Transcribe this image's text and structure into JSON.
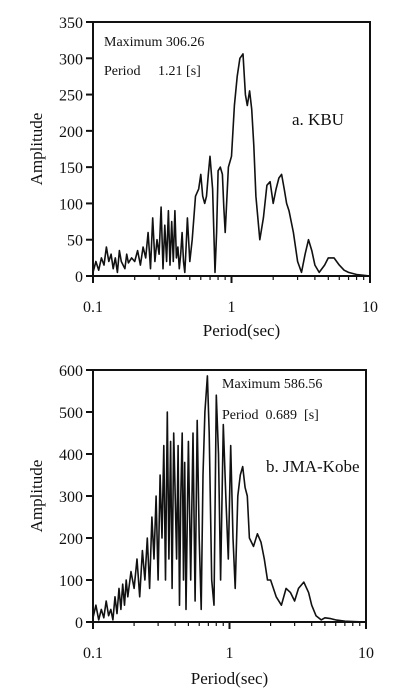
{
  "chart_data": [
    {
      "type": "line",
      "panel_label": "a. KBU",
      "annotation_max": "Maximum 306.26",
      "annotation_period": "Period     1.21 [s]",
      "xlabel": "Period(sec)",
      "ylabel": "Amplitude",
      "xscale": "log",
      "xlim": [
        0.1,
        10
      ],
      "ylim": [
        0,
        350
      ],
      "xticks": [
        0.1,
        1,
        10
      ],
      "xtick_labels": [
        "0.1",
        "1",
        "10"
      ],
      "yticks": [
        0,
        50,
        100,
        150,
        200,
        250,
        300,
        350
      ],
      "ytick_labels": [
        "0",
        "50",
        "100",
        "150",
        "200",
        "250",
        "300",
        "350"
      ],
      "grid": false,
      "series": [
        {
          "x": [
            0.1,
            0.105,
            0.11,
            0.115,
            0.12,
            0.125,
            0.13,
            0.135,
            0.14,
            0.145,
            0.15,
            0.155,
            0.16,
            0.165,
            0.17,
            0.175,
            0.18,
            0.19,
            0.2,
            0.21,
            0.22,
            0.23,
            0.24,
            0.25,
            0.26,
            0.27,
            0.28,
            0.29,
            0.3,
            0.31,
            0.32,
            0.33,
            0.34,
            0.35,
            0.36,
            0.37,
            0.38,
            0.39,
            0.4,
            0.41,
            0.42,
            0.43,
            0.44,
            0.45,
            0.46,
            0.47,
            0.48,
            0.5,
            0.52,
            0.55,
            0.58,
            0.6,
            0.62,
            0.64,
            0.66,
            0.68,
            0.7,
            0.73,
            0.76,
            0.78,
            0.8,
            0.83,
            0.86,
            0.88,
            0.9,
            0.95,
            1.0,
            1.05,
            1.1,
            1.15,
            1.21,
            1.26,
            1.3,
            1.35,
            1.4,
            1.45,
            1.5,
            1.6,
            1.7,
            1.8,
            1.9,
            2.0,
            2.1,
            2.2,
            2.3,
            2.4,
            2.5,
            2.6,
            2.8,
            3.0,
            3.2,
            3.4,
            3.6,
            3.8,
            4.0,
            4.3,
            4.7,
            5.0,
            5.5,
            6.0,
            6.5,
            7.0,
            8.0,
            9.0,
            10.0
          ],
          "y": [
            5,
            20,
            8,
            25,
            15,
            40,
            20,
            30,
            10,
            25,
            5,
            35,
            20,
            15,
            10,
            30,
            18,
            25,
            20,
            35,
            15,
            40,
            25,
            60,
            10,
            80,
            20,
            50,
            30,
            95,
            10,
            70,
            20,
            90,
            15,
            75,
            20,
            90,
            25,
            40,
            10,
            30,
            60,
            20,
            5,
            40,
            80,
            20,
            50,
            110,
            120,
            140,
            110,
            100,
            110,
            140,
            165,
            120,
            5,
            60,
            145,
            150,
            140,
            95,
            60,
            150,
            165,
            235,
            275,
            300,
            306,
            250,
            235,
            255,
            230,
            180,
            110,
            50,
            80,
            125,
            130,
            100,
            120,
            135,
            140,
            120,
            100,
            90,
            60,
            20,
            5,
            30,
            50,
            35,
            15,
            5,
            15,
            25,
            25,
            15,
            8,
            5,
            2,
            1,
            0
          ]
        }
      ]
    },
    {
      "type": "line",
      "panel_label": "b. JMA-Kobe",
      "annotation_max": "Maximum 586.56",
      "annotation_period": "Period  0.689  [s]",
      "xlabel": "Period(sec)",
      "ylabel": "Amplitude",
      "xscale": "log",
      "xlim": [
        0.1,
        10
      ],
      "ylim": [
        0,
        600
      ],
      "xticks": [
        0.1,
        1,
        10
      ],
      "xtick_labels": [
        "0.1",
        "1",
        "10"
      ],
      "yticks": [
        0,
        100,
        200,
        300,
        400,
        500,
        600
      ],
      "ytick_labels": [
        "0",
        "100",
        "200",
        "300",
        "400",
        "500",
        "600"
      ],
      "grid": false,
      "series": [
        {
          "x": [
            0.1,
            0.105,
            0.11,
            0.115,
            0.12,
            0.125,
            0.13,
            0.135,
            0.14,
            0.145,
            0.15,
            0.155,
            0.16,
            0.165,
            0.17,
            0.175,
            0.18,
            0.19,
            0.2,
            0.21,
            0.22,
            0.23,
            0.24,
            0.25,
            0.26,
            0.27,
            0.28,
            0.29,
            0.3,
            0.31,
            0.32,
            0.33,
            0.34,
            0.35,
            0.36,
            0.37,
            0.38,
            0.39,
            0.4,
            0.41,
            0.42,
            0.43,
            0.44,
            0.45,
            0.46,
            0.47,
            0.48,
            0.5,
            0.52,
            0.54,
            0.56,
            0.58,
            0.6,
            0.62,
            0.64,
            0.66,
            0.689,
            0.71,
            0.74,
            0.77,
            0.8,
            0.83,
            0.86,
            0.9,
            0.94,
            0.98,
            1.02,
            1.06,
            1.1,
            1.15,
            1.2,
            1.25,
            1.3,
            1.35,
            1.4,
            1.5,
            1.6,
            1.7,
            1.8,
            1.9,
            2.0,
            2.2,
            2.4,
            2.6,
            2.8,
            3.0,
            3.2,
            3.5,
            3.8,
            4.0,
            4.3,
            4.7,
            5.0,
            5.5,
            6.0,
            7.0,
            8.0,
            10.0
          ],
          "y": [
            10,
            40,
            5,
            30,
            10,
            50,
            15,
            30,
            5,
            60,
            20,
            80,
            30,
            90,
            40,
            100,
            60,
            120,
            80,
            150,
            60,
            170,
            100,
            200,
            80,
            250,
            150,
            300,
            100,
            350,
            200,
            420,
            100,
            500,
            150,
            430,
            80,
            450,
            300,
            150,
            420,
            40,
            300,
            450,
            100,
            380,
            30,
            430,
            100,
            450,
            50,
            480,
            200,
            30,
            350,
            500,
            586,
            450,
            100,
            40,
            540,
            400,
            100,
            470,
            300,
            150,
            420,
            200,
            80,
            300,
            350,
            370,
            320,
            300,
            200,
            180,
            210,
            190,
            150,
            100,
            100,
            60,
            40,
            80,
            70,
            50,
            80,
            95,
            70,
            40,
            15,
            5,
            10,
            8,
            5,
            2,
            1,
            0
          ]
        }
      ]
    }
  ]
}
